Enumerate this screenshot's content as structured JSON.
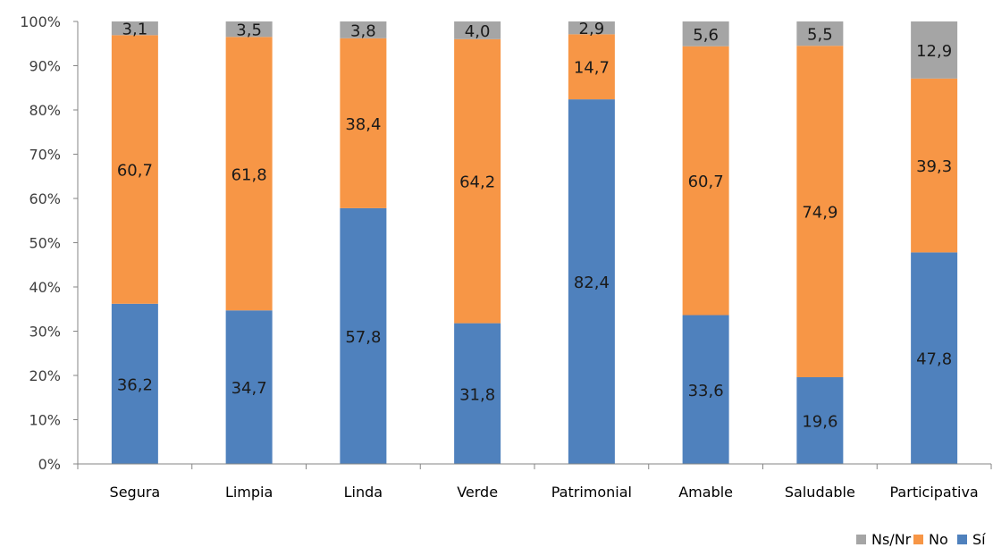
{
  "chart_data": {
    "type": "bar",
    "stacked": true,
    "percent_stacked": true,
    "categories": [
      "Segura",
      "Limpia",
      "Linda",
      "Verde",
      "Patrimonial",
      "Amable",
      "Saludable",
      "Participativa"
    ],
    "series": [
      {
        "name": "Sí",
        "color": "#4f81bd",
        "values": [
          36.2,
          34.7,
          57.8,
          31.8,
          82.4,
          33.6,
          19.6,
          47.8
        ],
        "labels": [
          "36,2",
          "34,7",
          "57,8",
          "31,8",
          "82,4",
          "33,6",
          "19,6",
          "47,8"
        ]
      },
      {
        "name": "No",
        "color": "#f79646",
        "values": [
          60.7,
          61.8,
          38.4,
          64.2,
          14.7,
          60.7,
          74.9,
          39.3
        ],
        "labels": [
          "60,7",
          "61,8",
          "38,4",
          "64,2",
          "14,7",
          "60,7",
          "74,9",
          "39,3"
        ]
      },
      {
        "name": "Ns/Nr",
        "color": "#a5a5a5",
        "values": [
          3.1,
          3.5,
          3.8,
          4.0,
          2.9,
          5.6,
          5.5,
          12.9
        ],
        "labels": [
          "3,1",
          "3,5",
          "3,8",
          "4,0",
          "2,9",
          "5,6",
          "5,5",
          "12,9"
        ]
      }
    ],
    "yticks": [
      "0%",
      "10%",
      "20%",
      "30%",
      "40%",
      "50%",
      "60%",
      "70%",
      "80%",
      "90%",
      "100%"
    ],
    "ylim": [
      0,
      100
    ],
    "grid": false,
    "legend_position": "bottom-right",
    "legend_order": [
      "Ns/Nr",
      "No",
      "Sí"
    ]
  }
}
